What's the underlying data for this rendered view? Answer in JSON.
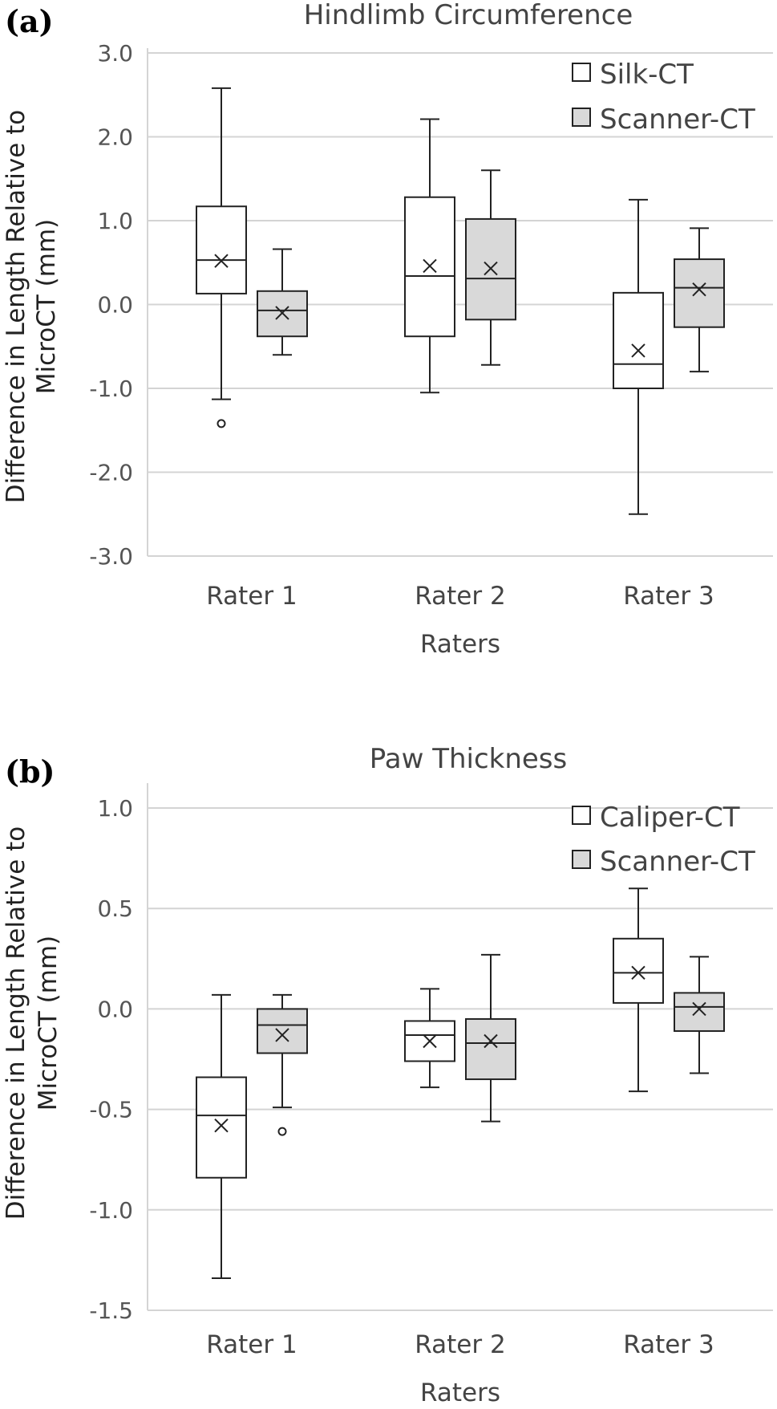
{
  "chart_data": [
    {
      "panel_label": "(a)",
      "type": "box",
      "title": "Hindlimb Circumference",
      "xlabel": "Raters",
      "ylabel_lines": [
        "Difference in Length Relative to",
        "MicroCT (mm)"
      ],
      "ylim": [
        -3.0,
        3.0
      ],
      "yticks": [
        3.0,
        2.0,
        1.0,
        0.0,
        -1.0,
        -2.0,
        -3.0
      ],
      "ytick_labels": [
        "3.0",
        "2.0",
        "1.0",
        "0.0",
        "-1.0",
        "-2.0",
        "-3.0"
      ],
      "grid": true,
      "legend_position": "top-right",
      "categories": [
        "Rater 1",
        "Rater 2",
        "Rater 3"
      ],
      "series": [
        {
          "name": "Silk-CT",
          "fill": "#ffffff",
          "boxes": [
            {
              "min": -1.13,
              "q1": 0.13,
              "median": 0.53,
              "q3": 1.17,
              "max": 2.58,
              "mean": 0.52,
              "outliers": [
                -1.42
              ]
            },
            {
              "min": -1.05,
              "q1": -0.38,
              "median": 0.34,
              "q3": 1.28,
              "max": 2.21,
              "mean": 0.46,
              "outliers": []
            },
            {
              "min": -2.5,
              "q1": -1.0,
              "median": -0.71,
              "q3": 0.14,
              "max": 1.25,
              "mean": -0.55,
              "outliers": []
            }
          ]
        },
        {
          "name": "Scanner-CT",
          "fill": "#d9d9d9",
          "boxes": [
            {
              "min": -0.6,
              "q1": -0.38,
              "median": -0.07,
              "q3": 0.16,
              "max": 0.66,
              "mean": -0.1,
              "outliers": []
            },
            {
              "min": -0.72,
              "q1": -0.18,
              "median": 0.31,
              "q3": 1.02,
              "max": 1.6,
              "mean": 0.43,
              "outliers": []
            },
            {
              "min": -0.8,
              "q1": -0.27,
              "median": 0.2,
              "q3": 0.54,
              "max": 0.91,
              "mean": 0.18,
              "outliers": []
            }
          ]
        }
      ]
    },
    {
      "panel_label": "(b)",
      "type": "box",
      "title": "Paw Thickness",
      "xlabel": "Raters",
      "ylabel_lines": [
        "Difference in Length Relative to",
        "MicroCT (mm)"
      ],
      "ylim": [
        -1.5,
        1.1
      ],
      "yticks": [
        1.0,
        0.5,
        0.0,
        -0.5,
        -1.0,
        -1.5
      ],
      "ytick_labels": [
        "1.0",
        "0.5",
        "0.0",
        "-0.5",
        "-1.0",
        "-1.5"
      ],
      "grid": true,
      "legend_position": "top-right",
      "categories": [
        "Rater 1",
        "Rater 2",
        "Rater 3"
      ],
      "series": [
        {
          "name": "Caliper-CT",
          "fill": "#ffffff",
          "boxes": [
            {
              "min": -1.34,
              "q1": -0.84,
              "median": -0.53,
              "q3": -0.34,
              "max": 0.07,
              "mean": -0.58,
              "outliers": []
            },
            {
              "min": -0.39,
              "q1": -0.26,
              "median": -0.13,
              "q3": -0.06,
              "max": 0.1,
              "mean": -0.16,
              "outliers": []
            },
            {
              "min": -0.41,
              "q1": 0.03,
              "median": 0.18,
              "q3": 0.35,
              "max": 0.6,
              "mean": 0.18,
              "outliers": []
            }
          ]
        },
        {
          "name": "Scanner-CT",
          "fill": "#d9d9d9",
          "boxes": [
            {
              "min": -0.49,
              "q1": -0.22,
              "median": -0.08,
              "q3": 0.0,
              "max": 0.07,
              "mean": -0.13,
              "outliers": [
                -0.61
              ]
            },
            {
              "min": -0.56,
              "q1": -0.35,
              "median": -0.17,
              "q3": -0.05,
              "max": 0.27,
              "mean": -0.16,
              "outliers": []
            },
            {
              "min": -0.32,
              "q1": -0.11,
              "median": 0.01,
              "q3": 0.08,
              "max": 0.26,
              "mean": 0.0,
              "outliers": []
            }
          ]
        }
      ]
    }
  ]
}
